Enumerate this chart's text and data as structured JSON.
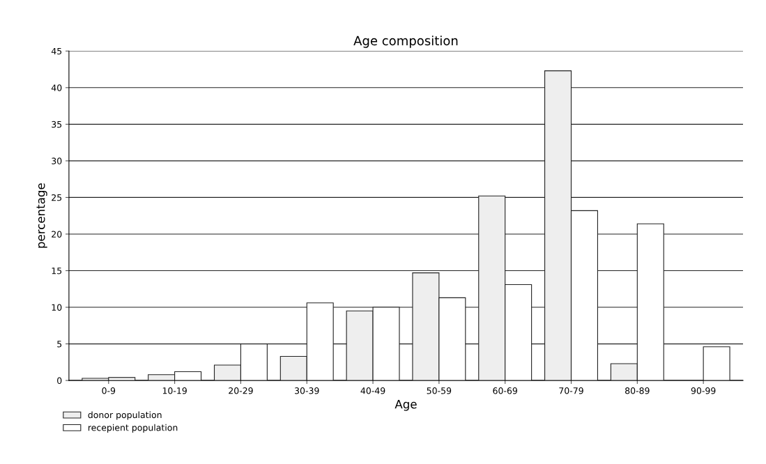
{
  "chart_data": {
    "type": "bar",
    "title": "Age composition",
    "xlabel": "Age",
    "ylabel": "percentage",
    "categories": [
      "0-9",
      "10-19",
      "20-29",
      "30-39",
      "40-49",
      "50-59",
      "60-69",
      "70-79",
      "80-89",
      "90-99"
    ],
    "series": [
      {
        "name": "donor population",
        "color": "#eeeeee",
        "values": [
          0.3,
          0.8,
          2.1,
          3.3,
          9.5,
          14.7,
          25.2,
          42.3,
          2.3,
          null
        ]
      },
      {
        "name": "recepient population",
        "color": "#ffffff",
        "values": [
          0.4,
          1.2,
          5.0,
          10.6,
          10.0,
          11.3,
          13.1,
          23.2,
          21.4,
          4.6
        ]
      }
    ],
    "ylim": [
      0,
      45
    ],
    "yticks": [
      0,
      5,
      10,
      15,
      20,
      25,
      30,
      35,
      40,
      45
    ],
    "grid": "y",
    "legend": "bottom left"
  }
}
